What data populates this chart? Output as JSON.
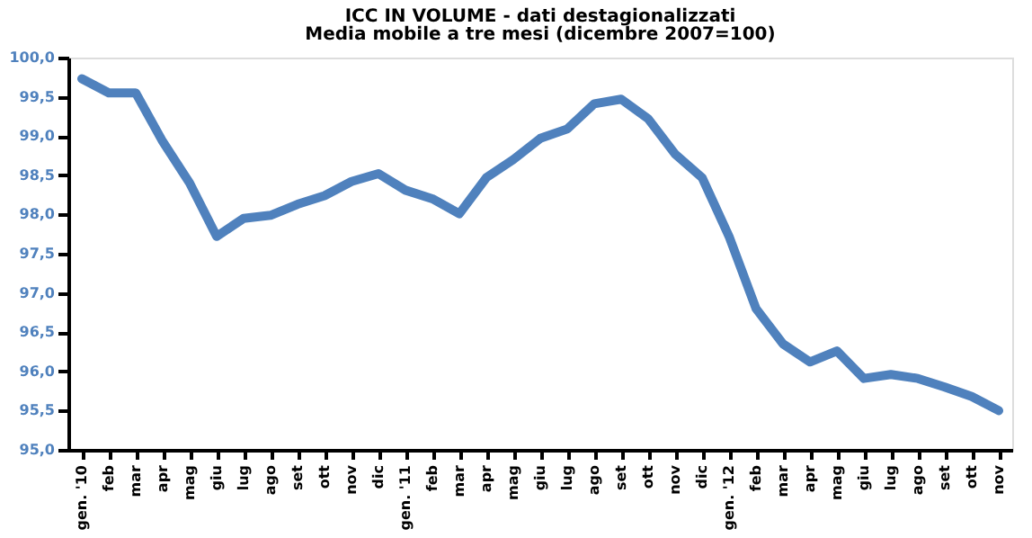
{
  "chart_data": {
    "type": "line",
    "title": "ICC IN VOLUME - dati destagionalizzati",
    "subtitle": "Media mobile a tre mesi (dicembre 2007=100)",
    "categories": [
      "gen. '10",
      "feb",
      "mar",
      "apr",
      "mag",
      "giu",
      "lug",
      "ago",
      "set",
      "ott",
      "nov",
      "dic",
      "gen. '11",
      "feb",
      "mar",
      "apr",
      "mag",
      "giu",
      "lug",
      "ago",
      "set",
      "ott",
      "nov",
      "dic",
      "gen. '12",
      "feb",
      "mar",
      "apr",
      "mag",
      "giu",
      "lug",
      "ago",
      "set",
      "ott",
      "nov"
    ],
    "series": [
      {
        "color": "#4f81bd",
        "values": [
          99.73,
          99.55,
          99.55,
          98.93,
          98.4,
          97.72,
          97.95,
          97.99,
          98.13,
          98.24,
          98.42,
          98.52,
          98.31,
          98.2,
          98.01,
          98.47,
          98.7,
          98.97,
          99.09,
          99.41,
          99.47,
          99.22,
          98.77,
          98.47,
          97.72,
          96.8,
          96.35,
          96.12,
          96.26,
          95.91,
          95.96,
          95.91,
          95.8,
          95.68,
          95.5
        ]
      }
    ],
    "ylim": [
      95,
      100
    ],
    "yticks": [
      {
        "value": 95,
        "label": "95,0"
      },
      {
        "value": 95.5,
        "label": "95,5"
      },
      {
        "value": 96,
        "label": "96,0"
      },
      {
        "value": 96.5,
        "label": "96,5"
      },
      {
        "value": 97,
        "label": "97,0"
      },
      {
        "value": 97.5,
        "label": "97,5"
      },
      {
        "value": 98,
        "label": "98,0"
      },
      {
        "value": 98.5,
        "label": "98,5"
      },
      {
        "value": 99,
        "label": "99,0"
      },
      {
        "value": 99.5,
        "label": "99,5"
      },
      {
        "value": 100,
        "label": "100,0"
      }
    ],
    "grid": false,
    "marker": "none",
    "line_style": "solid"
  }
}
